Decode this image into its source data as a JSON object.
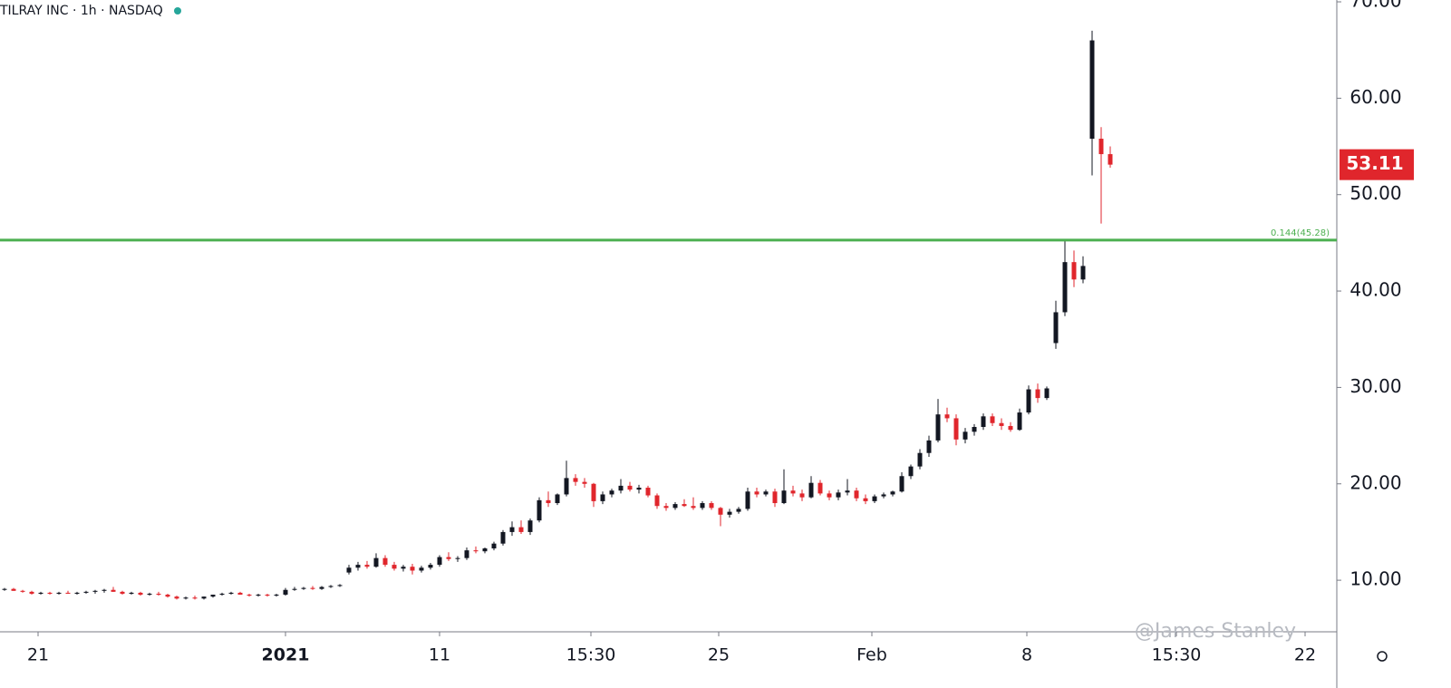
{
  "chart_data": {
    "type": "candlestick",
    "title": "TILRAY INC · 1h · NASDAQ",
    "watermark": "@James Stanley",
    "up_color": "#131722",
    "down_color": "#e0262c",
    "ohlc": [
      [
        9.0,
        9.2,
        8.9,
        9.1
      ],
      [
        9.1,
        9.2,
        8.9,
        8.9
      ],
      [
        8.9,
        9.0,
        8.7,
        8.8
      ],
      [
        8.8,
        8.9,
        8.5,
        8.6
      ],
      [
        8.6,
        8.8,
        8.5,
        8.7
      ],
      [
        8.7,
        8.8,
        8.5,
        8.6
      ],
      [
        8.6,
        8.8,
        8.5,
        8.7
      ],
      [
        8.7,
        8.9,
        8.6,
        8.6
      ],
      [
        8.6,
        8.8,
        8.5,
        8.7
      ],
      [
        8.7,
        8.9,
        8.6,
        8.8
      ],
      [
        8.8,
        9.0,
        8.6,
        8.9
      ],
      [
        8.9,
        9.1,
        8.7,
        9.0
      ],
      [
        9.0,
        9.3,
        8.8,
        8.8
      ],
      [
        8.8,
        8.9,
        8.5,
        8.6
      ],
      [
        8.6,
        8.8,
        8.5,
        8.7
      ],
      [
        8.7,
        8.8,
        8.4,
        8.5
      ],
      [
        8.5,
        8.7,
        8.4,
        8.6
      ],
      [
        8.6,
        8.8,
        8.4,
        8.5
      ],
      [
        8.5,
        8.6,
        8.2,
        8.3
      ],
      [
        8.3,
        8.4,
        8.0,
        8.1
      ],
      [
        8.1,
        8.3,
        8.0,
        8.2
      ],
      [
        8.2,
        8.4,
        8.0,
        8.1
      ],
      [
        8.1,
        8.3,
        8.0,
        8.3
      ],
      [
        8.3,
        8.5,
        8.2,
        8.5
      ],
      [
        8.5,
        8.7,
        8.4,
        8.6
      ],
      [
        8.6,
        8.8,
        8.5,
        8.7
      ],
      [
        8.7,
        8.8,
        8.5,
        8.5
      ],
      [
        8.5,
        8.6,
        8.3,
        8.4
      ],
      [
        8.4,
        8.6,
        8.3,
        8.5
      ],
      [
        8.5,
        8.6,
        8.3,
        8.4
      ],
      [
        8.4,
        8.6,
        8.3,
        8.5
      ],
      [
        8.5,
        9.2,
        8.4,
        9.0
      ],
      [
        9.0,
        9.3,
        8.9,
        9.1
      ],
      [
        9.1,
        9.3,
        9.0,
        9.2
      ],
      [
        9.2,
        9.4,
        9.0,
        9.1
      ],
      [
        9.1,
        9.4,
        9.0,
        9.3
      ],
      [
        9.3,
        9.5,
        9.2,
        9.4
      ],
      [
        9.4,
        9.6,
        9.3,
        9.5
      ],
      [
        10.8,
        11.6,
        10.6,
        11.3
      ],
      [
        11.3,
        11.9,
        11.0,
        11.6
      ],
      [
        11.6,
        12.0,
        11.2,
        11.4
      ],
      [
        11.4,
        12.8,
        11.3,
        12.3
      ],
      [
        12.3,
        12.6,
        11.4,
        11.6
      ],
      [
        11.6,
        11.9,
        11.0,
        11.2
      ],
      [
        11.2,
        11.6,
        10.9,
        11.4
      ],
      [
        11.4,
        11.7,
        10.6,
        11.0
      ],
      [
        11.0,
        11.5,
        10.8,
        11.3
      ],
      [
        11.3,
        11.8,
        11.1,
        11.6
      ],
      [
        11.6,
        12.6,
        11.4,
        12.4
      ],
      [
        12.4,
        12.9,
        12.0,
        12.2
      ],
      [
        12.2,
        12.5,
        11.9,
        12.3
      ],
      [
        12.3,
        13.4,
        12.1,
        13.1
      ],
      [
        13.1,
        13.5,
        12.8,
        13.0
      ],
      [
        13.0,
        13.4,
        12.8,
        13.3
      ],
      [
        13.3,
        14.0,
        13.1,
        13.8
      ],
      [
        13.8,
        15.2,
        13.6,
        15.0
      ],
      [
        15.0,
        16.1,
        14.6,
        15.5
      ],
      [
        15.5,
        16.2,
        14.8,
        15.0
      ],
      [
        15.0,
        16.4,
        14.7,
        16.2
      ],
      [
        16.2,
        18.6,
        16.0,
        18.3
      ],
      [
        18.3,
        19.2,
        17.6,
        18.0
      ],
      [
        18.0,
        19.0,
        17.8,
        18.9
      ],
      [
        18.9,
        22.4,
        18.7,
        20.6
      ],
      [
        20.6,
        21.0,
        19.8,
        20.2
      ],
      [
        20.2,
        20.6,
        19.6,
        20.0
      ],
      [
        20.0,
        20.1,
        17.6,
        18.2
      ],
      [
        18.2,
        19.2,
        17.9,
        18.9
      ],
      [
        18.9,
        19.5,
        18.6,
        19.3
      ],
      [
        19.3,
        20.5,
        19.0,
        19.8
      ],
      [
        19.8,
        20.2,
        19.2,
        19.4
      ],
      [
        19.4,
        19.9,
        19.0,
        19.6
      ],
      [
        19.6,
        19.8,
        18.6,
        18.8
      ],
      [
        18.8,
        19.0,
        17.4,
        17.7
      ],
      [
        17.7,
        18.0,
        17.2,
        17.5
      ],
      [
        17.5,
        18.1,
        17.3,
        17.9
      ],
      [
        17.9,
        18.4,
        17.6,
        17.7
      ],
      [
        17.7,
        18.6,
        17.3,
        17.5
      ],
      [
        17.5,
        18.2,
        17.3,
        18.0
      ],
      [
        18.0,
        18.2,
        17.3,
        17.5
      ],
      [
        17.5,
        17.6,
        15.6,
        16.8
      ],
      [
        16.8,
        17.4,
        16.5,
        17.1
      ],
      [
        17.1,
        17.6,
        16.9,
        17.4
      ],
      [
        17.4,
        19.6,
        17.2,
        19.2
      ],
      [
        19.2,
        19.6,
        18.6,
        18.9
      ],
      [
        18.9,
        19.4,
        18.7,
        19.2
      ],
      [
        19.2,
        19.5,
        17.6,
        18.0
      ],
      [
        18.0,
        21.5,
        17.9,
        19.3
      ],
      [
        19.3,
        19.8,
        18.7,
        19.0
      ],
      [
        19.0,
        19.4,
        18.2,
        18.6
      ],
      [
        18.6,
        20.8,
        18.5,
        20.1
      ],
      [
        20.1,
        20.4,
        18.8,
        19.0
      ],
      [
        19.0,
        19.3,
        18.3,
        18.6
      ],
      [
        18.6,
        19.4,
        18.3,
        19.1
      ],
      [
        19.1,
        20.5,
        18.8,
        19.3
      ],
      [
        19.3,
        19.6,
        18.2,
        18.5
      ],
      [
        18.5,
        18.9,
        17.9,
        18.2
      ],
      [
        18.2,
        18.9,
        18.0,
        18.7
      ],
      [
        18.7,
        19.1,
        18.5,
        18.9
      ],
      [
        18.9,
        19.3,
        18.7,
        19.2
      ],
      [
        19.2,
        21.2,
        19.1,
        20.8
      ],
      [
        20.8,
        22.0,
        20.5,
        21.8
      ],
      [
        21.8,
        23.6,
        21.5,
        23.2
      ],
      [
        23.2,
        25.0,
        22.8,
        24.5
      ],
      [
        24.5,
        28.8,
        24.3,
        27.2
      ],
      [
        27.2,
        27.9,
        26.4,
        26.8
      ],
      [
        26.8,
        27.2,
        24.0,
        24.6
      ],
      [
        24.6,
        25.8,
        24.2,
        25.4
      ],
      [
        25.4,
        26.2,
        25.0,
        25.9
      ],
      [
        25.9,
        27.3,
        25.6,
        27.0
      ],
      [
        27.0,
        27.3,
        26.0,
        26.3
      ],
      [
        26.3,
        26.8,
        25.6,
        26.0
      ],
      [
        26.0,
        26.4,
        25.4,
        25.6
      ],
      [
        25.6,
        27.8,
        25.5,
        27.4
      ],
      [
        27.4,
        30.2,
        27.2,
        29.8
      ],
      [
        29.8,
        30.4,
        28.4,
        28.9
      ],
      [
        28.9,
        30.1,
        28.7,
        29.9
      ],
      [
        34.6,
        39.0,
        34.0,
        37.8
      ],
      [
        37.8,
        45.3,
        37.4,
        43.0
      ],
      [
        43.0,
        44.2,
        40.4,
        41.2
      ],
      [
        41.2,
        43.6,
        40.8,
        42.6
      ],
      [
        55.8,
        67.0,
        52.0,
        66.0
      ],
      [
        55.8,
        57.0,
        47.0,
        54.2
      ],
      [
        54.2,
        55.0,
        52.8,
        53.11
      ]
    ],
    "xlim": [
      -0.5,
      147
    ],
    "xticks": [
      {
        "value": 3.7,
        "label": "21"
      },
      {
        "value": 31,
        "label": "2021"
      },
      {
        "value": 48,
        "label": "11"
      },
      {
        "value": 64.7,
        "label": "15:30"
      },
      {
        "value": 78.8,
        "label": "25"
      },
      {
        "value": 95.7,
        "label": "Feb"
      },
      {
        "value": 112.8,
        "label": "8"
      },
      {
        "value": 129.3,
        "label": "15:30"
      },
      {
        "value": 143.5,
        "label": "22"
      }
    ],
    "ylim": [
      4.65,
      70.19
    ],
    "yticks": [
      {
        "value": 10,
        "label": "10.00"
      },
      {
        "value": 20,
        "label": "20.00"
      },
      {
        "value": 30,
        "label": "30.00"
      },
      {
        "value": 40,
        "label": "40.00"
      },
      {
        "value": 50,
        "label": "50.00"
      },
      {
        "value": 60,
        "label": "60.00"
      },
      {
        "value": 70,
        "label": "70.00"
      }
    ],
    "hline": {
      "value": 45.28,
      "label": "0.144(45.28)",
      "color": "#4caf50"
    }
  }
}
